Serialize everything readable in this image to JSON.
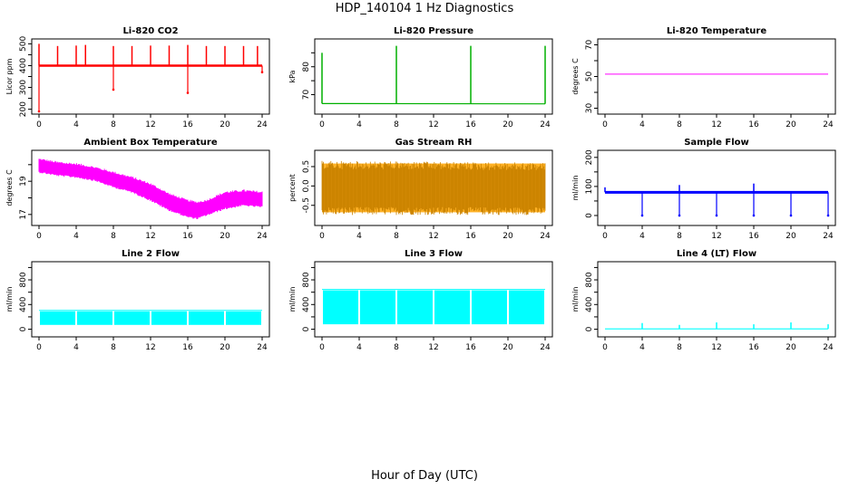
{
  "title": "HDP_140104  1 Hz Diagnostics",
  "xlabel": "Hour of Day (UTC)",
  "chart_data": [
    {
      "type": "line",
      "title": "Li-820 CO2",
      "ylabel": "Licor ppm",
      "color": "#ff0000",
      "xlim": [
        0,
        24
      ],
      "ylim": [
        190,
        510
      ],
      "xticks": [
        0,
        4,
        8,
        12,
        16,
        20,
        24
      ],
      "yticks": [
        200,
        250,
        300,
        350,
        400,
        450,
        500
      ],
      "ytick_labels": [
        "200",
        "",
        "300",
        "",
        "400",
        "",
        "500"
      ],
      "baseline": 400,
      "spikes_up": [
        [
          0,
          500
        ],
        [
          2,
          490
        ],
        [
          4,
          492
        ],
        [
          5,
          495
        ],
        [
          8,
          490
        ],
        [
          10,
          490
        ],
        [
          12,
          492
        ],
        [
          14,
          492
        ],
        [
          16,
          495
        ],
        [
          18,
          490
        ],
        [
          20,
          490
        ],
        [
          22,
          490
        ],
        [
          23.5,
          490
        ]
      ],
      "spikes_down": [
        [
          0,
          190
        ],
        [
          8,
          290
        ],
        [
          16,
          275
        ],
        [
          24,
          370
        ]
      ]
    },
    {
      "type": "line",
      "title": "Li-820 Pressure",
      "ylabel": "kPa",
      "color": "#00b000",
      "xlim": [
        0,
        24
      ],
      "ylim": [
        64,
        89
      ],
      "xticks": [
        0,
        4,
        8,
        12,
        16,
        20,
        24
      ],
      "yticks": [
        70,
        75,
        80,
        85
      ],
      "ytick_labels": [
        "70",
        "",
        "80",
        ""
      ],
      "baseline_start": 66.8,
      "baseline_end": 66.7,
      "spikes_up": [
        [
          0,
          85
        ],
        [
          8,
          87.5
        ],
        [
          16,
          87.5
        ],
        [
          24,
          87.5
        ]
      ]
    },
    {
      "type": "line",
      "title": "Li-820 Temperature",
      "ylabel": "degrees C",
      "color": "#ff00ff",
      "xlim": [
        0,
        24
      ],
      "ylim": [
        28,
        72
      ],
      "xticks": [
        0,
        4,
        8,
        12,
        16,
        20,
        24
      ],
      "yticks": [
        30,
        40,
        50,
        60,
        70
      ],
      "ytick_labels": [
        "30",
        "",
        "50",
        "",
        "70"
      ],
      "x": [
        0,
        24
      ],
      "y": [
        51.5,
        51.5
      ]
    },
    {
      "type": "area",
      "title": "Ambient Box Temperature",
      "ylabel": "degrees C",
      "color": "#ff00ff",
      "xlim": [
        0,
        24
      ],
      "ylim": [
        16.5,
        20.7
      ],
      "xticks": [
        0,
        4,
        8,
        12,
        16,
        20,
        24
      ],
      "yticks": [
        17,
        18,
        19,
        20
      ],
      "ytick_labels": [
        "17",
        "",
        "19",
        ""
      ],
      "x": [
        0,
        2,
        4,
        6,
        8,
        10,
        12,
        14,
        16,
        17,
        18,
        20,
        22,
        24
      ],
      "upper": [
        20.3,
        20.1,
        20.0,
        19.8,
        19.5,
        19.2,
        18.8,
        18.2,
        17.8,
        17.7,
        17.8,
        18.3,
        18.4,
        18.3
      ],
      "lower": [
        19.6,
        19.4,
        19.3,
        19.1,
        18.7,
        18.4,
        17.9,
        17.3,
        16.9,
        16.8,
        17.0,
        17.4,
        17.6,
        17.5
      ]
    },
    {
      "type": "area",
      "title": "Gas Stream RH",
      "ylabel": "percent",
      "color": "#ffa500",
      "xlim": [
        0,
        24
      ],
      "ylim": [
        -0.95,
        0.85
      ],
      "xticks": [
        0,
        4,
        8,
        12,
        16,
        20,
        24
      ],
      "yticks": [
        -0.5,
        0,
        0.5
      ],
      "ytick_labels": [
        "-0.5",
        "0.0",
        "0.5"
      ],
      "x": [
        0,
        24
      ],
      "upper": [
        0.65,
        0.6
      ],
      "lower": [
        -0.75,
        -0.75
      ]
    },
    {
      "type": "line",
      "title": "Sample Flow",
      "ylabel": "ml/min",
      "color": "#0000ff",
      "xlim": [
        0,
        24
      ],
      "ylim": [
        -25,
        215
      ],
      "xticks": [
        0,
        4,
        8,
        12,
        16,
        20,
        24
      ],
      "yticks": [
        0,
        50,
        100,
        150,
        200
      ],
      "ytick_labels": [
        "0",
        "",
        "100",
        "",
        "200"
      ],
      "baseline": 80,
      "spikes_up": [
        [
          0,
          97
        ],
        [
          8,
          105
        ],
        [
          16,
          110
        ]
      ],
      "spikes_down": [
        [
          4,
          0
        ],
        [
          8,
          0
        ],
        [
          12,
          0
        ],
        [
          16,
          0
        ],
        [
          20,
          0
        ],
        [
          24,
          0
        ]
      ]
    },
    {
      "type": "area",
      "title": "Line 2 Flow",
      "ylabel": "ml/min",
      "color": "#00ffff",
      "xlim": [
        0,
        24
      ],
      "ylim": [
        -80,
        1050
      ],
      "xticks": [
        0,
        4,
        8,
        12,
        16,
        20,
        24
      ],
      "yticks": [
        0,
        200,
        400,
        600,
        800,
        1000
      ],
      "ytick_labels": [
        "0",
        "",
        "400",
        "",
        "800",
        ""
      ],
      "x": [
        0,
        24
      ],
      "upper": [
        290,
        290
      ],
      "lower": [
        70,
        70
      ],
      "gaps": [
        4,
        8,
        12,
        16,
        20
      ]
    },
    {
      "type": "area",
      "title": "Line 3 Flow",
      "ylabel": "ml/min",
      "color": "#00ffff",
      "xlim": [
        0,
        24
      ],
      "ylim": [
        -80,
        1050
      ],
      "xticks": [
        0,
        4,
        8,
        12,
        16,
        20,
        24
      ],
      "yticks": [
        0,
        200,
        400,
        600,
        800,
        1000
      ],
      "ytick_labels": [
        "0",
        "",
        "400",
        "",
        "800",
        ""
      ],
      "x": [
        0,
        24
      ],
      "upper": [
        630,
        630
      ],
      "lower": [
        80,
        80
      ],
      "gaps": [
        4,
        8,
        12,
        16,
        20
      ]
    },
    {
      "type": "line",
      "title": "Line 4 (LT) Flow",
      "ylabel": "ml/min",
      "color": "#00ffff",
      "xlim": [
        0,
        24
      ],
      "ylim": [
        -80,
        1050
      ],
      "xticks": [
        0,
        4,
        8,
        12,
        16,
        20,
        24
      ],
      "yticks": [
        0,
        200,
        400,
        600,
        800,
        1000
      ],
      "ytick_labels": [
        "0",
        "",
        "400",
        "",
        "800",
        ""
      ],
      "baseline": 5,
      "spikes_up": [
        [
          4,
          100
        ],
        [
          8,
          70
        ],
        [
          12,
          110
        ],
        [
          16,
          80
        ],
        [
          20,
          110
        ],
        [
          24,
          80
        ]
      ]
    }
  ]
}
